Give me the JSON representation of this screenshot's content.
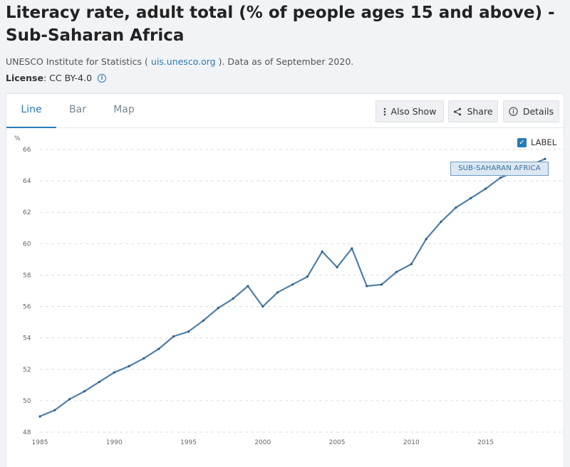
{
  "header": {
    "title": "Literacy rate, adult total (% of people ages 15 and above) - Sub-Saharan Africa",
    "source_prefix": "UNESCO Institute for Statistics ( ",
    "source_link": "uis.unesco.org",
    "source_suffix": " ). Data as of September 2020.",
    "license_label": "License",
    "license_value": " : CC BY-4.0",
    "info_glyph": "i"
  },
  "tabs": [
    {
      "label": "Line",
      "active": true
    },
    {
      "label": "Bar",
      "active": false
    },
    {
      "label": "Map",
      "active": false
    }
  ],
  "toolbar": {
    "also_show": "Also Show",
    "share": "Share",
    "details": "Details"
  },
  "legend": {
    "checkbox_label": "LABEL",
    "checked": true,
    "series_tag": "SUB-SAHARAN AFRICA"
  },
  "colors": {
    "accent": "#2a7ab8",
    "line": "#4f7fa8",
    "grid": "#d9dde2"
  },
  "chart_data": {
    "type": "line",
    "ylabel": "%",
    "xlabel": "",
    "ylim": [
      48,
      66
    ],
    "xlim": [
      1985,
      2019
    ],
    "yticks": [
      48,
      50,
      52,
      54,
      56,
      58,
      60,
      62,
      64,
      66
    ],
    "xticks": [
      1985,
      1990,
      1995,
      2000,
      2005,
      2010,
      2015
    ],
    "grid": "horizontal dashed",
    "series": [
      {
        "name": "SUB-SAHARAN AFRICA",
        "x": [
          1985,
          1986,
          1987,
          1988,
          1989,
          1990,
          1991,
          1992,
          1993,
          1994,
          1995,
          1996,
          1997,
          1998,
          1999,
          2000,
          2001,
          2002,
          2003,
          2004,
          2005,
          2006,
          2007,
          2008,
          2009,
          2010,
          2011,
          2012,
          2013,
          2014,
          2015,
          2016,
          2017,
          2018,
          2019
        ],
        "y": [
          49.0,
          49.4,
          50.1,
          50.6,
          51.2,
          51.8,
          52.2,
          52.7,
          53.3,
          54.1,
          54.4,
          55.1,
          55.9,
          56.5,
          57.3,
          56.0,
          56.9,
          57.4,
          57.9,
          59.5,
          58.5,
          59.7,
          57.3,
          57.4,
          58.2,
          58.7,
          60.3,
          61.4,
          62.3,
          62.9,
          63.5,
          64.2,
          64.6,
          65.0,
          65.4
        ]
      }
    ]
  }
}
